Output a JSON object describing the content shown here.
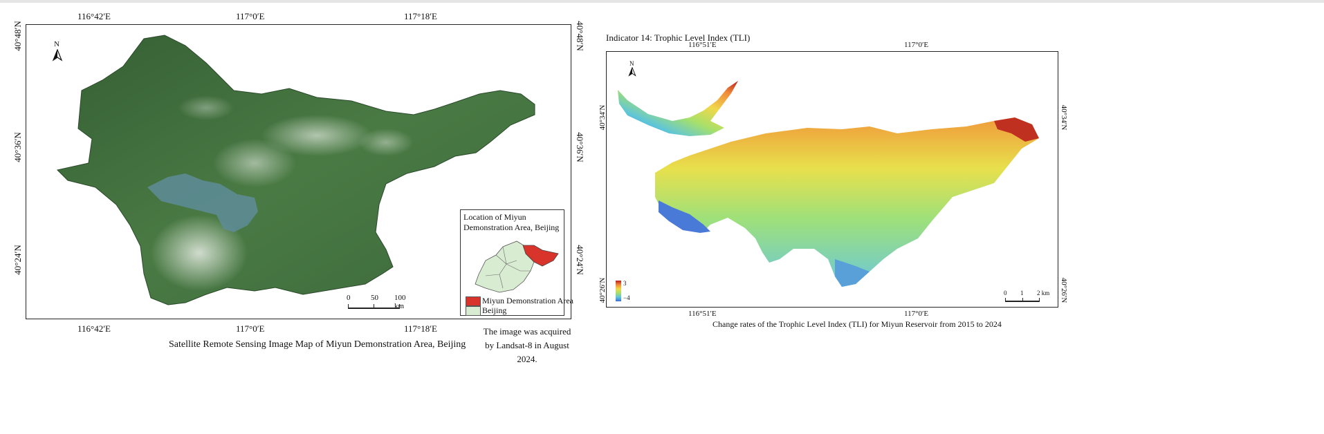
{
  "left_map": {
    "top_lon_labels": [
      "116°42′E",
      "117°0′E",
      "117°18′E"
    ],
    "bottom_lon_labels": [
      "116°42′E",
      "117°0′E",
      "117°18′E"
    ],
    "left_lat_labels": [
      "40°48′N",
      "40°36′N",
      "40°24′N"
    ],
    "right_lat_labels": [
      "40°48′N",
      "40°36′N",
      "40°24′N"
    ],
    "north_label": "N",
    "inset": {
      "title": "Location of Miyun Demonstration Area, Beijing",
      "legend": [
        {
          "label": "Miyun Demonstration Area",
          "color": "#d9342b"
        },
        {
          "label": "Beijing",
          "color": "#d8ecd2"
        }
      ]
    },
    "scale_bar": {
      "labels": [
        "0",
        "50",
        "100 km"
      ]
    },
    "caption": "Satellite Remote Sensing Image Map of Miyun Demonstration Area, Beijing",
    "note": "The image was acquired by Landsat-8 in August 2024."
  },
  "right_map": {
    "heading": "Indicator 14: Trophic Level Index (TLI)",
    "top_lon_labels": [
      "116°51′E",
      "117°0′E"
    ],
    "bottom_lon_labels": [
      "116°51′E",
      "117°0′E"
    ],
    "left_lat_labels": [
      "40°34′N",
      "40°26′N"
    ],
    "right_lat_labels": [
      "40°34′N",
      "40°26′N"
    ],
    "north_label": "N",
    "color_legend": {
      "max": "3",
      "min": "−4"
    },
    "scale_bar": {
      "labels": [
        "0",
        "1",
        "2 km"
      ]
    },
    "caption": "Change rates of the Trophic Level Index (TLI) for Miyun Reservoir from 2015 to 2024"
  },
  "colors": {
    "vegetation": "#3f6b3a",
    "water": "#5e8c99",
    "miyun": "#d9342b",
    "beijing": "#d8ecd2"
  }
}
